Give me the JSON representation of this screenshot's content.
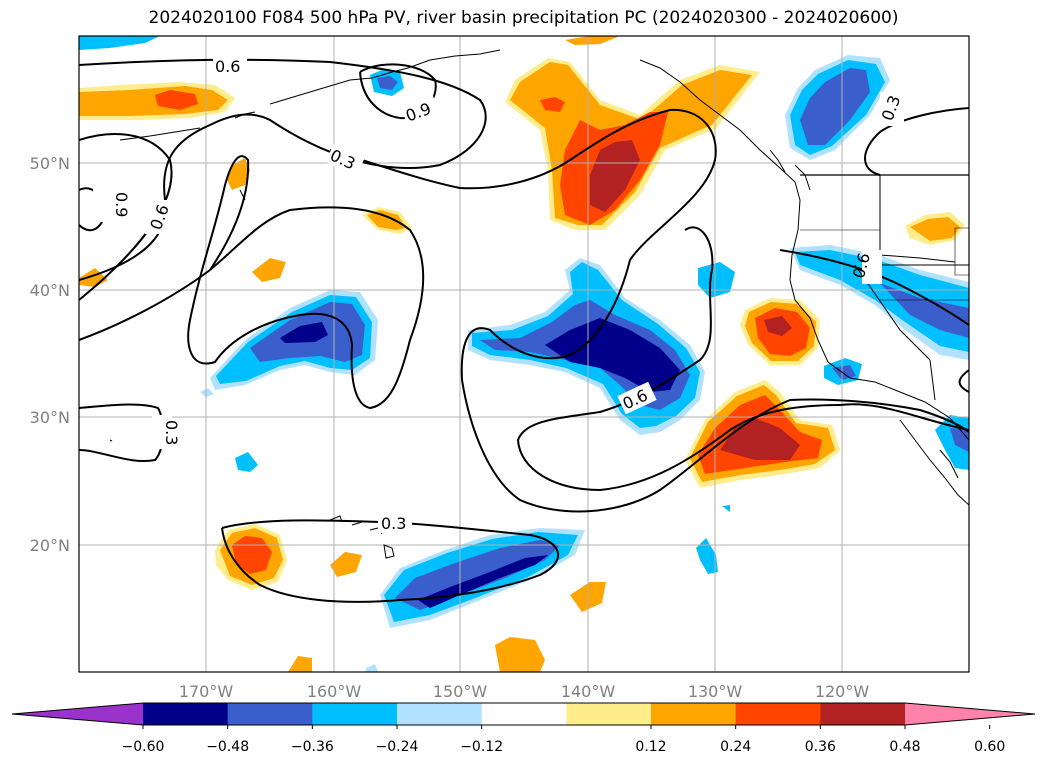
{
  "title": "2024020100 F084 500 hPa PV, river basin precipitation PC (2024020300 - 2024020600)",
  "map": {
    "lon_labels": [
      "170°W",
      "160°W",
      "150°W",
      "140°W",
      "130°W",
      "120°W"
    ],
    "lat_labels": [
      "50°N",
      "40°N",
      "30°N",
      "20°N"
    ],
    "contour_labels": [
      "0.6",
      "0.9",
      "0.3",
      "0.9",
      "0.6",
      "0.3",
      "0.6",
      "0.3",
      "0.6",
      "0.3"
    ]
  },
  "colorbar": {
    "colors": [
      "#9933cc",
      "#00008b",
      "#3a5fcd",
      "#00bfff",
      "#b0e2ff",
      "#ffffff",
      "#ffec8b",
      "#ffa500",
      "#ff4500",
      "#b22222",
      "#ff82ab"
    ],
    "tick_labels": [
      "−0.60",
      "−0.48",
      "−0.36",
      "−0.24",
      "−0.12",
      "0.12",
      "0.24",
      "0.36",
      "0.48",
      "0.60"
    ]
  }
}
